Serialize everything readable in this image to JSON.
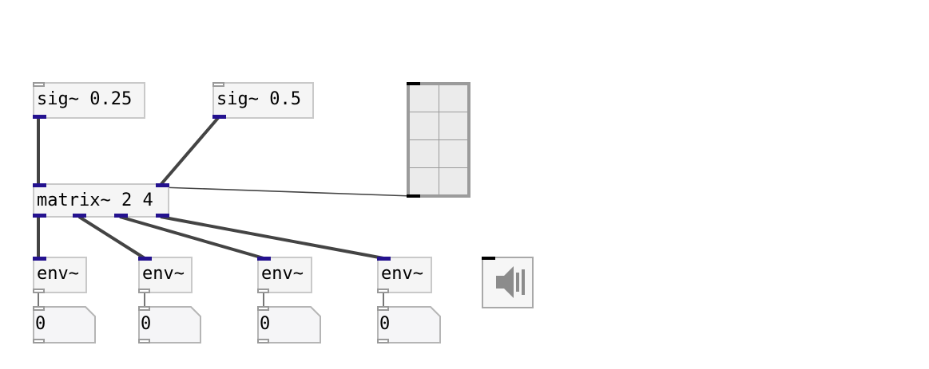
{
  "patch": {
    "sig_a": "sig~ 0.25",
    "sig_b": "sig~ 0.5",
    "matrix": "matrix~ 2 4",
    "env_objects": [
      "env~",
      "env~",
      "env~",
      "env~"
    ],
    "number_boxes": [
      "0",
      "0",
      "0",
      "0"
    ],
    "toggle_grid": {
      "columns": 2,
      "rows": 4
    },
    "speaker_icon": "speaker-icon"
  },
  "colors": {
    "signal_port": "#24128f",
    "wire": "#444444",
    "box_border": "#c9c9c9"
  }
}
